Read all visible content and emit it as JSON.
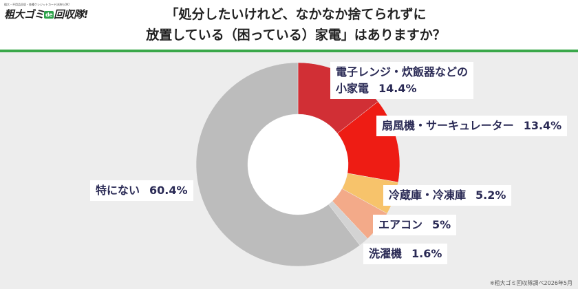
{
  "logo": {
    "tagline": "粗大・不用品回収・各種クレジットカード決済もOK!",
    "name_prefix": "粗大ゴミ",
    "name_badge": "de",
    "name_suffix": "回収隊!"
  },
  "title_lines": [
    "「処分したいけれど、なかなか捨てられずに",
    "放置している（困っている）家電」はありますか？"
  ],
  "source_note": "※粗大ゴミ回収隊調べ2026年5月",
  "chart_data": {
    "type": "pie",
    "donut": true,
    "start": "12 o'clock, clockwise",
    "slices": [
      {
        "label_lines": [
          "電子レンジ・炊飯器などの",
          "小家電"
        ],
        "value": 14.4,
        "display": "14.4%",
        "color": "#d12f35"
      },
      {
        "label_lines": [
          "扇風機・サーキュレーター"
        ],
        "value": 13.4,
        "display": "13.4%",
        "color": "#ee1c14"
      },
      {
        "label_lines": [
          "冷蔵庫・冷凍庫"
        ],
        "value": 5.2,
        "display": "5.2%",
        "color": "#f7c36b"
      },
      {
        "label_lines": [
          "エアコン"
        ],
        "value": 5,
        "display": "5%",
        "color": "#f3aa89"
      },
      {
        "label_lines": [
          "洗濯機"
        ],
        "value": 1.6,
        "display": "1.6%",
        "color": "#d3d3d3"
      },
      {
        "label_lines": [
          "特にない"
        ],
        "value": 60.4,
        "display": "60.4%",
        "color": "#bcbcbc"
      }
    ]
  }
}
